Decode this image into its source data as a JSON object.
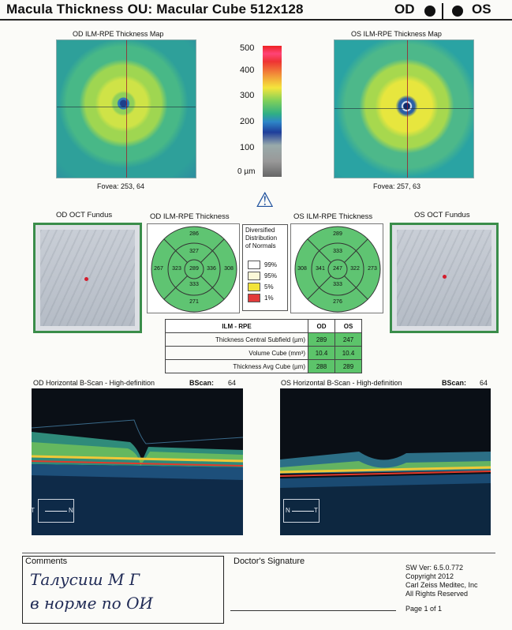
{
  "header": {
    "title": "Macula Thickness OU: Macular Cube 512x128",
    "od": "OD",
    "os": "OS"
  },
  "thickness_map": {
    "od_title": "OD ILM-RPE Thickness Map",
    "os_title": "OS ILM-RPE Thickness Map",
    "od_fovea": "Fovea: 253, 64",
    "os_fovea": "Fovea: 257, 63",
    "scale_labels": [
      "500",
      "400",
      "300",
      "200",
      "100",
      "0 µm"
    ]
  },
  "fundus": {
    "od_title": "OD OCT Fundus",
    "os_title": "OS OCT Fundus"
  },
  "etdrs": {
    "od_title": "OD ILM-RPE Thickness",
    "os_title": "OS ILM-RPE Thickness",
    "od": {
      "superior_outer": "286",
      "superior_inner": "327",
      "temporal_outer": "267",
      "temporal_inner": "323",
      "central": "289",
      "nasal_inner": "336",
      "nasal_outer": "308",
      "inferior_inner": "333",
      "inferior_outer": "271"
    },
    "os": {
      "nasal_outer": "308",
      "nasal_inner": "341",
      "central": "247",
      "temporal_inner": "322",
      "temporal_outer": "273",
      "superior_outer": "289",
      "superior_inner": "333",
      "inferior_inner": "333",
      "inferior_outer": "276"
    }
  },
  "legend": {
    "title_lines": [
      "Diversified",
      "Distribution",
      "of Normals"
    ],
    "items": [
      {
        "label": "99%",
        "color": "#ffffff"
      },
      {
        "label": "95%",
        "color": "#fbf8d8"
      },
      {
        "label": "5%",
        "color": "#f2e33a"
      },
      {
        "label": "1%",
        "color": "#e23a3a"
      }
    ],
    "warning_symbol": "⚠"
  },
  "table": {
    "headers": [
      "ILM - RPE",
      "OD",
      "OS"
    ],
    "rows": [
      {
        "label": "Thickness Central Subfield (µm)",
        "od": "289",
        "os": "247"
      },
      {
        "label": "Volume Cube (mm³)",
        "od": "10.4",
        "os": "10.4"
      },
      {
        "label": "Thickness Avg Cube (µm)",
        "od": "288",
        "os": "289"
      }
    ]
  },
  "bscan": {
    "od_title": "OD Horizontal B-Scan - High-definition",
    "os_title": "OS Horizontal B-Scan - High-definition",
    "bscan_label": "BScan:",
    "od_bscan": "64",
    "os_bscan": "64",
    "od_orient": {
      "left": "T",
      "right": "N"
    },
    "os_orient": {
      "left": "N",
      "right": "T"
    }
  },
  "footer": {
    "comments_label": "Comments",
    "handwriting_line1": "Талусиш М Г",
    "handwriting_line2": "в норме по ОИ",
    "signature_label": "Doctor's Signature",
    "sw_version": "SW Ver: 6.5.0.772",
    "copyright": "Copyright 2012",
    "company": "Carl Zeiss Meditec, Inc",
    "rights": "All Rights Reserved",
    "page": "Page 1 of 1"
  }
}
